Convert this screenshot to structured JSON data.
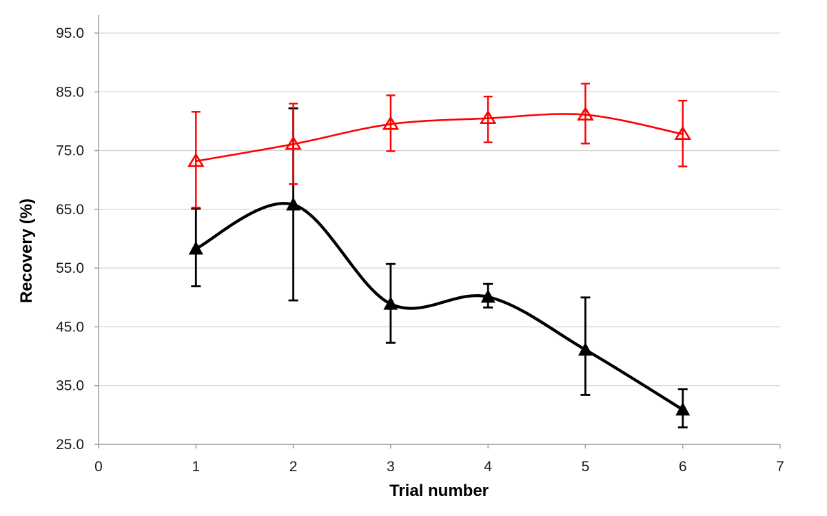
{
  "figure": {
    "background": "#ffffff",
    "title": "",
    "legend": "none"
  },
  "chart_data": {
    "type": "line",
    "title": "",
    "xlabel": "Trial number",
    "ylabel": "Recovery (%)",
    "xlim": [
      0,
      7
    ],
    "ylim": [
      25,
      98
    ],
    "grid": "horizontal",
    "legend_position": "none",
    "xtick_values": [
      0,
      1,
      2,
      3,
      4,
      5,
      6,
      7
    ],
    "xtick_labels": [
      "0",
      "1",
      "2",
      "3",
      "4",
      "5",
      "6",
      "7"
    ],
    "ytick_values": [
      25,
      35,
      45,
      55,
      65,
      75,
      85,
      95
    ],
    "ytick_labels": [
      "25.0",
      "35.0",
      "45.0",
      "55.0",
      "65.0",
      "75.0",
      "85.0",
      "95.0"
    ],
    "x": [
      1,
      2,
      3,
      4,
      5,
      6
    ],
    "series": [
      {
        "name": "lower-black-series",
        "color": "#000000",
        "marker": "filled-triangle",
        "line_style": "smooth",
        "line_width": 4.3,
        "err_line_width": 2.8,
        "values": [
          58.3,
          65.8,
          48.9,
          50.1,
          41.1,
          30.9
        ],
        "err_upper": [
          65.1,
          82.2,
          55.7,
          52.3,
          50.0,
          34.4
        ],
        "err_lower": [
          51.9,
          49.5,
          42.3,
          48.3,
          33.4,
          27.9
        ]
      },
      {
        "name": "upper-red-series",
        "color": "#fe0000",
        "marker": "open-triangle",
        "line_style": "smooth",
        "line_width": 2.6,
        "err_line_width": 2.4,
        "values": [
          73.2,
          76.1,
          79.5,
          80.5,
          81.1,
          77.8
        ],
        "err_upper": [
          81.6,
          83.0,
          84.4,
          84.2,
          86.4,
          83.5
        ],
        "err_lower": [
          65.3,
          69.3,
          74.9,
          76.4,
          76.2,
          72.3
        ]
      }
    ],
    "colors": {
      "gridline": "#d6d6d6",
      "axis": "#a0a0a0",
      "tick_text": "#1a1a1a",
      "title_text": "#000000"
    }
  }
}
